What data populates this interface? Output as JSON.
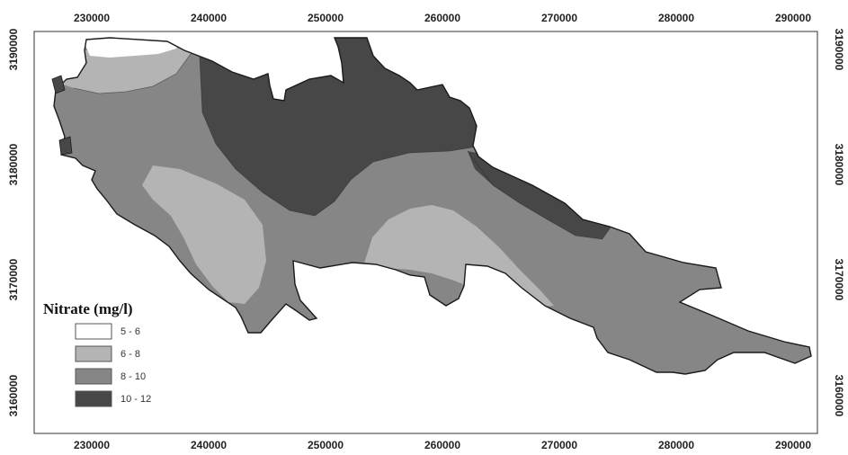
{
  "map": {
    "x_ticks": [
      "230000",
      "240000",
      "250000",
      "260000",
      "270000",
      "280000",
      "290000"
    ],
    "y_ticks": [
      "3190000",
      "3180000",
      "3170000",
      "3160000"
    ],
    "legend": {
      "title": "Nitrate (mg/l)",
      "classes": [
        {
          "label": "5 - 6",
          "color": "#ffffff"
        },
        {
          "label": "6 - 8",
          "color": "#b4b4b4"
        },
        {
          "label": "8 - 10",
          "color": "#868686"
        },
        {
          "label": "10 - 12",
          "color": "#474747"
        }
      ]
    },
    "outline_color": "#1a1a1a"
  }
}
